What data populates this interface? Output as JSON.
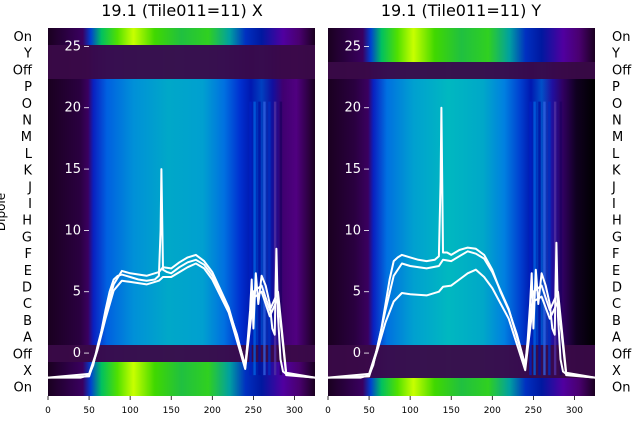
{
  "figure": {
    "ylabel_dipole": "Dipole",
    "left_row_labels": [
      "On",
      "Y",
      "Off",
      "P",
      "O",
      "N",
      "M",
      "L",
      "K",
      "J",
      "I",
      "H",
      "G",
      "F",
      "E",
      "D",
      "C",
      "B",
      "A",
      "Off",
      "X",
      "On"
    ],
    "right_row_labels": [
      "On",
      "Y",
      "Off",
      "P",
      "O",
      "N",
      "M",
      "L",
      "K",
      "J",
      "I",
      "H",
      "G",
      "F",
      "E",
      "D",
      "C",
      "B",
      "A",
      "Off",
      "X",
      "On"
    ]
  },
  "chart_data": [
    {
      "type": "heatmap",
      "title": "19.1 (Tile011=11) X",
      "xlabel": "",
      "ylabel": "",
      "x_ticks": [
        0,
        50,
        100,
        150,
        200,
        250,
        300
      ],
      "y_ticks": [
        0,
        5,
        10,
        15,
        20,
        25
      ],
      "xlim": [
        0,
        325
      ],
      "ylim": [
        -3.5,
        26.5
      ],
      "overlay_line_color": "#ffffff",
      "colormap": [
        "#1a0020",
        "#3a0050",
        "#0010c8",
        "#0060e0",
        "#00a0c8",
        "#00c080",
        "#30e000",
        "#e0ff00"
      ],
      "series": [
        {
          "name": "",
          "x": [
            0,
            20,
            40,
            50,
            55,
            60,
            65,
            70,
            75,
            80,
            85,
            90,
            100,
            110,
            120,
            130,
            135,
            137,
            138,
            140,
            145,
            150,
            160,
            170,
            180,
            190,
            200,
            210,
            220,
            230,
            240,
            243,
            246,
            248,
            250,
            253,
            256,
            260,
            265,
            270,
            273,
            276,
            278,
            280,
            283,
            286,
            290,
            300,
            310,
            325
          ],
          "y": [
            -2,
            -2,
            -2,
            -1.8,
            -1,
            0.5,
            1.8,
            3.5,
            5,
            6,
            6.3,
            6.4,
            6.2,
            6,
            5.9,
            6,
            6.3,
            10,
            15,
            6.8,
            6.6,
            6.5,
            7,
            7.4,
            7.6,
            7.2,
            6.3,
            5,
            3.5,
            1.5,
            -1.2,
            1,
            3.5,
            6,
            2,
            6.5,
            4,
            6.3,
            5.5,
            4,
            2,
            1.5,
            8.5,
            3,
            -0.5,
            -1.5,
            -1.7,
            -1.8,
            -1.9,
            -2
          ]
        },
        {
          "name": "",
          "x": [
            0,
            50,
            60,
            70,
            80,
            90,
            100,
            120,
            135,
            140,
            150,
            160,
            170,
            180,
            190,
            200,
            220,
            240,
            250,
            260,
            270,
            280,
            290,
            325
          ],
          "y": [
            -2,
            -1.7,
            0.3,
            3.2,
            5.6,
            6.7,
            6.5,
            6.3,
            6.6,
            7,
            6.9,
            7.4,
            7.8,
            8,
            7.5,
            6.6,
            3.7,
            -1,
            5,
            5.5,
            3.5,
            5,
            -1.6,
            -2
          ]
        },
        {
          "name": "",
          "x": [
            0,
            50,
            60,
            70,
            80,
            90,
            100,
            120,
            135,
            140,
            150,
            160,
            170,
            180,
            190,
            200,
            220,
            240,
            250,
            260,
            270,
            280,
            290,
            325
          ],
          "y": [
            -2,
            -1.9,
            0.2,
            2.8,
            5.1,
            5.9,
            5.8,
            5.6,
            5.9,
            6.2,
            6.2,
            6.6,
            7,
            7.3,
            6.9,
            6,
            3.3,
            -1.3,
            4.5,
            5,
            3,
            4.5,
            -1.8,
            -2
          ]
        }
      ]
    },
    {
      "type": "heatmap",
      "title": "19.1 (Tile011=11) Y",
      "xlabel": "",
      "ylabel": "",
      "x_ticks": [
        0,
        50,
        100,
        150,
        200,
        250,
        300
      ],
      "y_ticks": [
        0,
        5,
        10,
        15,
        20,
        25
      ],
      "xlim": [
        0,
        325
      ],
      "ylim": [
        -3.5,
        26.5
      ],
      "overlay_line_color": "#ffffff",
      "colormap": [
        "#1a0020",
        "#3a0050",
        "#0010c8",
        "#0060e0",
        "#00a0c8",
        "#00c080",
        "#30e000",
        "#e0ff00"
      ],
      "series": [
        {
          "name": "",
          "x": [
            0,
            20,
            40,
            50,
            55,
            60,
            65,
            70,
            75,
            80,
            85,
            90,
            100,
            110,
            120,
            130,
            135,
            137,
            138,
            140,
            145,
            150,
            160,
            170,
            180,
            190,
            200,
            210,
            220,
            230,
            240,
            243,
            246,
            248,
            250,
            253,
            256,
            260,
            265,
            270,
            273,
            276,
            278,
            280,
            283,
            286,
            290,
            300,
            310,
            325
          ],
          "y": [
            -2,
            -2,
            -2,
            -1.8,
            -1,
            0.5,
            2,
            4,
            6,
            7.5,
            7.8,
            8,
            7.8,
            7.6,
            7.5,
            7.6,
            7.9,
            14,
            20,
            8.2,
            8.2,
            8,
            8.4,
            8.6,
            8.5,
            8,
            6.8,
            5,
            3.5,
            1.5,
            -1,
            1,
            4,
            6.5,
            2,
            6.8,
            4,
            6.5,
            5.5,
            4,
            2,
            1.5,
            9,
            3,
            -0.5,
            -1.5,
            -1.7,
            -1.8,
            -1.9,
            -2
          ]
        },
        {
          "name": "",
          "x": [
            0,
            50,
            60,
            70,
            80,
            90,
            100,
            120,
            135,
            140,
            150,
            160,
            170,
            180,
            190,
            200,
            220,
            240,
            250,
            260,
            270,
            280,
            290,
            325
          ],
          "y": [
            -2,
            -1.7,
            0.4,
            3.5,
            6.3,
            7.3,
            7.1,
            6.9,
            7.1,
            7.6,
            7.5,
            7.9,
            8.3,
            8.1,
            7.7,
            6.6,
            3.6,
            -1,
            5,
            5.5,
            3.5,
            5,
            -1.6,
            -2
          ]
        },
        {
          "name": "",
          "x": [
            0,
            50,
            60,
            70,
            80,
            90,
            100,
            120,
            135,
            140,
            150,
            160,
            170,
            180,
            190,
            200,
            220,
            240,
            250,
            260,
            270,
            280,
            290,
            325
          ],
          "y": [
            -2,
            -1.9,
            0.2,
            2.5,
            4.2,
            4.9,
            4.8,
            4.7,
            5,
            5.4,
            5.5,
            6,
            6.5,
            6.8,
            6.2,
            5.3,
            2.8,
            -1.4,
            4.2,
            4.6,
            2.8,
            4.2,
            -1.8,
            -2
          ]
        }
      ]
    }
  ]
}
